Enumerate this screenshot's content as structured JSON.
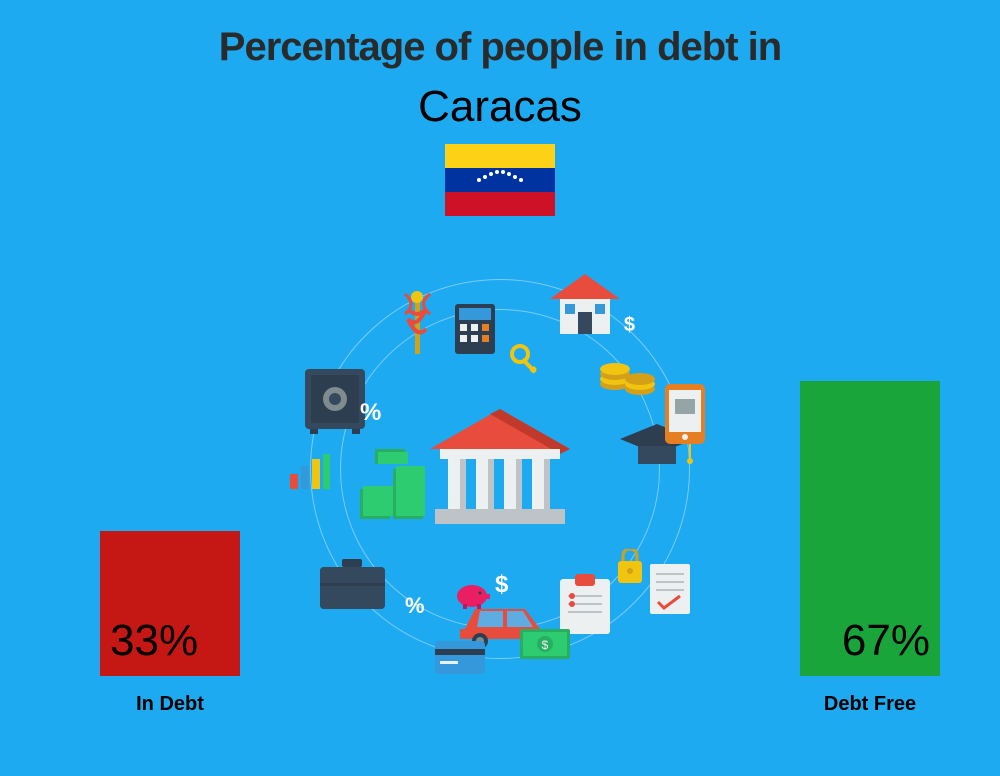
{
  "title": "Percentage of people in debt in",
  "subtitle": "Caracas",
  "title_color": "#2a2a2a",
  "title_fontsize": 40,
  "subtitle_fontsize": 44,
  "background_color": "#1eaaf1",
  "flag": {
    "colors": [
      "#fcd116",
      "#0033a0",
      "#ce1126"
    ],
    "star_count": 8
  },
  "chart": {
    "type": "bar",
    "max_value": 100,
    "bars": [
      {
        "label": "In Debt",
        "value": 33,
        "display_value": "33%",
        "color": "#c51714",
        "position": "left"
      },
      {
        "label": "Debt Free",
        "value": 67,
        "display_value": "67%",
        "color": "#1aa53b",
        "position": "right"
      }
    ],
    "label_fontsize": 20,
    "value_fontsize": 44,
    "value_color": "#000",
    "max_bar_height": 440
  },
  "center_illustration": {
    "description": "financial-icons-circle",
    "orbit_color": "rgba(255,255,255,0.4)"
  }
}
